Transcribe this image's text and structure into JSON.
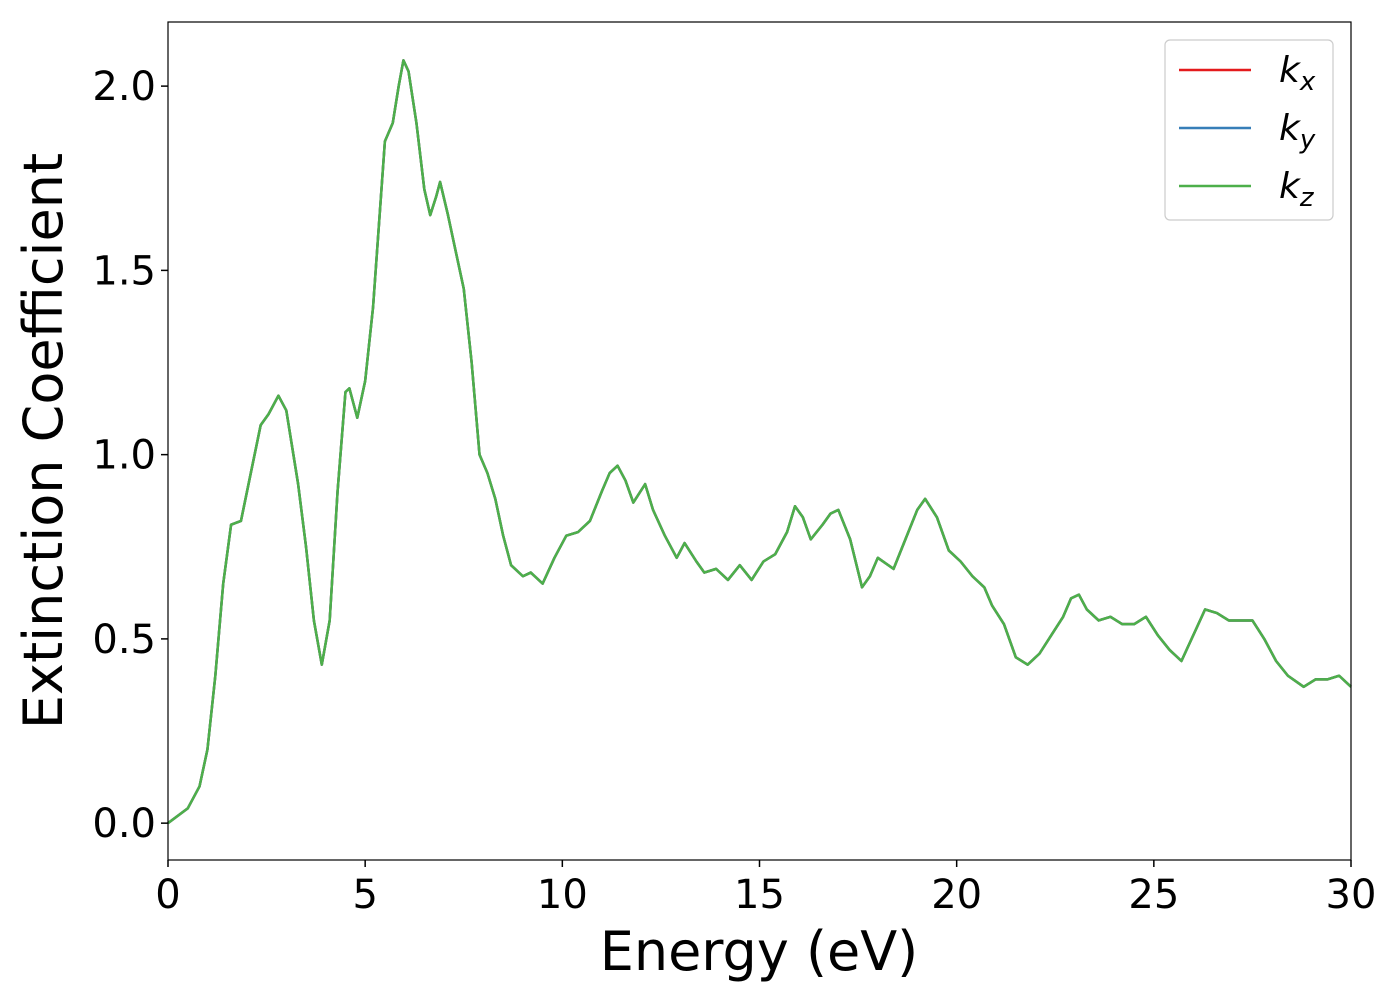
{
  "chart_data": {
    "type": "line",
    "xlabel": "Energy (eV)",
    "ylabel": "Extinction Coefficient",
    "x": [
      0,
      0.5,
      0.8,
      1.0,
      1.2,
      1.4,
      1.6,
      1.85,
      2.1,
      2.35,
      2.55,
      2.8,
      3.0,
      3.3,
      3.5,
      3.7,
      3.9,
      4.1,
      4.3,
      4.5,
      4.6,
      4.8,
      5.0,
      5.2,
      5.4,
      5.5,
      5.7,
      5.85,
      5.97,
      6.1,
      6.3,
      6.5,
      6.65,
      6.8,
      6.9,
      7.1,
      7.3,
      7.5,
      7.7,
      7.9,
      8.1,
      8.3,
      8.5,
      8.7,
      9.0,
      9.2,
      9.5,
      9.8,
      10.1,
      10.4,
      10.7,
      11.0,
      11.2,
      11.4,
      11.6,
      11.8,
      12.1,
      12.3,
      12.6,
      12.9,
      13.1,
      13.4,
      13.6,
      13.9,
      14.2,
      14.5,
      14.8,
      15.1,
      15.4,
      15.7,
      15.9,
      16.1,
      16.3,
      16.6,
      16.8,
      17.0,
      17.3,
      17.6,
      17.8,
      18.0,
      18.4,
      18.7,
      19.0,
      19.2,
      19.5,
      19.8,
      20.1,
      20.4,
      20.7,
      20.9,
      21.2,
      21.5,
      21.8,
      22.1,
      22.4,
      22.7,
      22.9,
      23.1,
      23.3,
      23.6,
      23.9,
      24.2,
      24.5,
      24.8,
      25.1,
      25.4,
      25.7,
      26.0,
      26.3,
      26.6,
      26.9,
      27.2,
      27.5,
      27.8,
      28.1,
      28.4,
      28.8,
      29.1,
      29.4,
      29.7,
      30.0
    ],
    "series": [
      {
        "name": "kx",
        "color": "#e41a1c",
        "values": [
          0,
          0.04,
          0.1,
          0.2,
          0.4,
          0.65,
          0.81,
          0.82,
          0.95,
          1.08,
          1.11,
          1.16,
          1.12,
          0.92,
          0.75,
          0.55,
          0.43,
          0.55,
          0.9,
          1.17,
          1.18,
          1.1,
          1.2,
          1.4,
          1.7,
          1.85,
          1.9,
          2.0,
          2.07,
          2.04,
          1.9,
          1.72,
          1.65,
          1.7,
          1.74,
          1.65,
          1.55,
          1.45,
          1.25,
          1.0,
          0.95,
          0.88,
          0.78,
          0.7,
          0.67,
          0.68,
          0.65,
          0.72,
          0.78,
          0.79,
          0.82,
          0.9,
          0.95,
          0.97,
          0.93,
          0.87,
          0.92,
          0.85,
          0.78,
          0.72,
          0.76,
          0.71,
          0.68,
          0.69,
          0.66,
          0.7,
          0.66,
          0.71,
          0.73,
          0.79,
          0.86,
          0.83,
          0.77,
          0.81,
          0.84,
          0.85,
          0.77,
          0.64,
          0.67,
          0.72,
          0.69,
          0.77,
          0.85,
          0.88,
          0.83,
          0.74,
          0.71,
          0.67,
          0.64,
          0.59,
          0.54,
          0.45,
          0.43,
          0.46,
          0.51,
          0.56,
          0.61,
          0.62,
          0.58,
          0.55,
          0.56,
          0.54,
          0.54,
          0.56,
          0.51,
          0.47,
          0.44,
          0.51,
          0.58,
          0.57,
          0.55,
          0.55,
          0.55,
          0.5,
          0.44,
          0.4,
          0.37,
          0.39,
          0.39,
          0.4,
          0.37
        ]
      },
      {
        "name": "ky",
        "color": "#377eb8",
        "values": [
          0,
          0.04,
          0.1,
          0.2,
          0.4,
          0.65,
          0.81,
          0.82,
          0.95,
          1.08,
          1.11,
          1.16,
          1.12,
          0.92,
          0.75,
          0.55,
          0.43,
          0.55,
          0.9,
          1.17,
          1.18,
          1.1,
          1.2,
          1.4,
          1.7,
          1.85,
          1.9,
          2.0,
          2.07,
          2.04,
          1.9,
          1.72,
          1.65,
          1.7,
          1.74,
          1.65,
          1.55,
          1.45,
          1.25,
          1.0,
          0.95,
          0.88,
          0.78,
          0.7,
          0.67,
          0.68,
          0.65,
          0.72,
          0.78,
          0.79,
          0.82,
          0.9,
          0.95,
          0.97,
          0.93,
          0.87,
          0.92,
          0.85,
          0.78,
          0.72,
          0.76,
          0.71,
          0.68,
          0.69,
          0.66,
          0.7,
          0.66,
          0.71,
          0.73,
          0.79,
          0.86,
          0.83,
          0.77,
          0.81,
          0.84,
          0.85,
          0.77,
          0.64,
          0.67,
          0.72,
          0.69,
          0.77,
          0.85,
          0.88,
          0.83,
          0.74,
          0.71,
          0.67,
          0.64,
          0.59,
          0.54,
          0.45,
          0.43,
          0.46,
          0.51,
          0.56,
          0.61,
          0.62,
          0.58,
          0.55,
          0.56,
          0.54,
          0.54,
          0.56,
          0.51,
          0.47,
          0.44,
          0.51,
          0.58,
          0.57,
          0.55,
          0.55,
          0.55,
          0.5,
          0.44,
          0.4,
          0.37,
          0.39,
          0.39,
          0.4,
          0.37
        ]
      },
      {
        "name": "kz",
        "color": "#4daf4a",
        "values": [
          0,
          0.04,
          0.1,
          0.2,
          0.4,
          0.65,
          0.81,
          0.82,
          0.95,
          1.08,
          1.11,
          1.16,
          1.12,
          0.92,
          0.75,
          0.55,
          0.43,
          0.55,
          0.9,
          1.17,
          1.18,
          1.1,
          1.2,
          1.4,
          1.7,
          1.85,
          1.9,
          2.0,
          2.07,
          2.04,
          1.9,
          1.72,
          1.65,
          1.7,
          1.74,
          1.65,
          1.55,
          1.45,
          1.25,
          1.0,
          0.95,
          0.88,
          0.78,
          0.7,
          0.67,
          0.68,
          0.65,
          0.72,
          0.78,
          0.79,
          0.82,
          0.9,
          0.95,
          0.97,
          0.93,
          0.87,
          0.92,
          0.85,
          0.78,
          0.72,
          0.76,
          0.71,
          0.68,
          0.69,
          0.66,
          0.7,
          0.66,
          0.71,
          0.73,
          0.79,
          0.86,
          0.83,
          0.77,
          0.81,
          0.84,
          0.85,
          0.77,
          0.64,
          0.67,
          0.72,
          0.69,
          0.77,
          0.85,
          0.88,
          0.83,
          0.74,
          0.71,
          0.67,
          0.64,
          0.59,
          0.54,
          0.45,
          0.43,
          0.46,
          0.51,
          0.56,
          0.61,
          0.62,
          0.58,
          0.55,
          0.56,
          0.54,
          0.54,
          0.56,
          0.51,
          0.47,
          0.44,
          0.51,
          0.58,
          0.57,
          0.55,
          0.55,
          0.55,
          0.5,
          0.44,
          0.4,
          0.37,
          0.39,
          0.39,
          0.4,
          0.37
        ]
      }
    ],
    "xlim": [
      0,
      30
    ],
    "xticks": [
      0,
      5,
      10,
      15,
      20,
      25,
      30
    ],
    "ylim": [
      -0.1,
      2.174
    ],
    "yticks": [
      {
        "value": 0,
        "label": "0.0"
      },
      0.5,
      {
        "value": 1,
        "label": "1.0"
      },
      1.5,
      {
        "value": 2,
        "label": "2.0"
      }
    ],
    "grid": false,
    "legend": "upper right"
  }
}
